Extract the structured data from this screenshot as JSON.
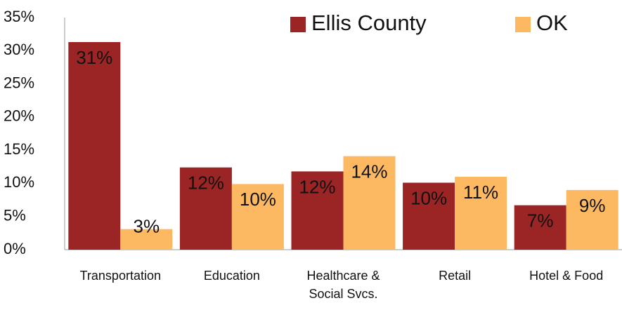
{
  "chart_data": {
    "type": "bar",
    "categories": [
      "Transportation",
      "Education",
      "Healthcare & Social Svcs.",
      "Retail",
      "Hotel & Food"
    ],
    "series": [
      {
        "name": "Ellis County",
        "color": "#9b2424",
        "values": [
          31.3,
          12.4,
          11.8,
          10.1,
          6.7
        ],
        "value_labels": [
          "31%",
          "12%",
          "12%",
          "10%",
          "7%"
        ]
      },
      {
        "name": "OK",
        "color": "#fdb962",
        "values": [
          3.1,
          9.9,
          14.1,
          11.0,
          9.0
        ],
        "value_labels": [
          "3%",
          "10%",
          "14%",
          "11%",
          "9%"
        ]
      }
    ],
    "ylim": [
      0,
      35
    ],
    "yticks": [
      {
        "value": 0,
        "label": "0%"
      },
      {
        "value": 5,
        "label": "5%"
      },
      {
        "value": 10,
        "label": "10%"
      },
      {
        "value": 15,
        "label": "15%"
      },
      {
        "value": 20,
        "label": "20%"
      },
      {
        "value": 25,
        "label": "25%"
      },
      {
        "value": 30,
        "label": "30%"
      },
      {
        "value": 35,
        "label": "35%"
      }
    ],
    "grid": false,
    "legend_position": "top-right"
  }
}
